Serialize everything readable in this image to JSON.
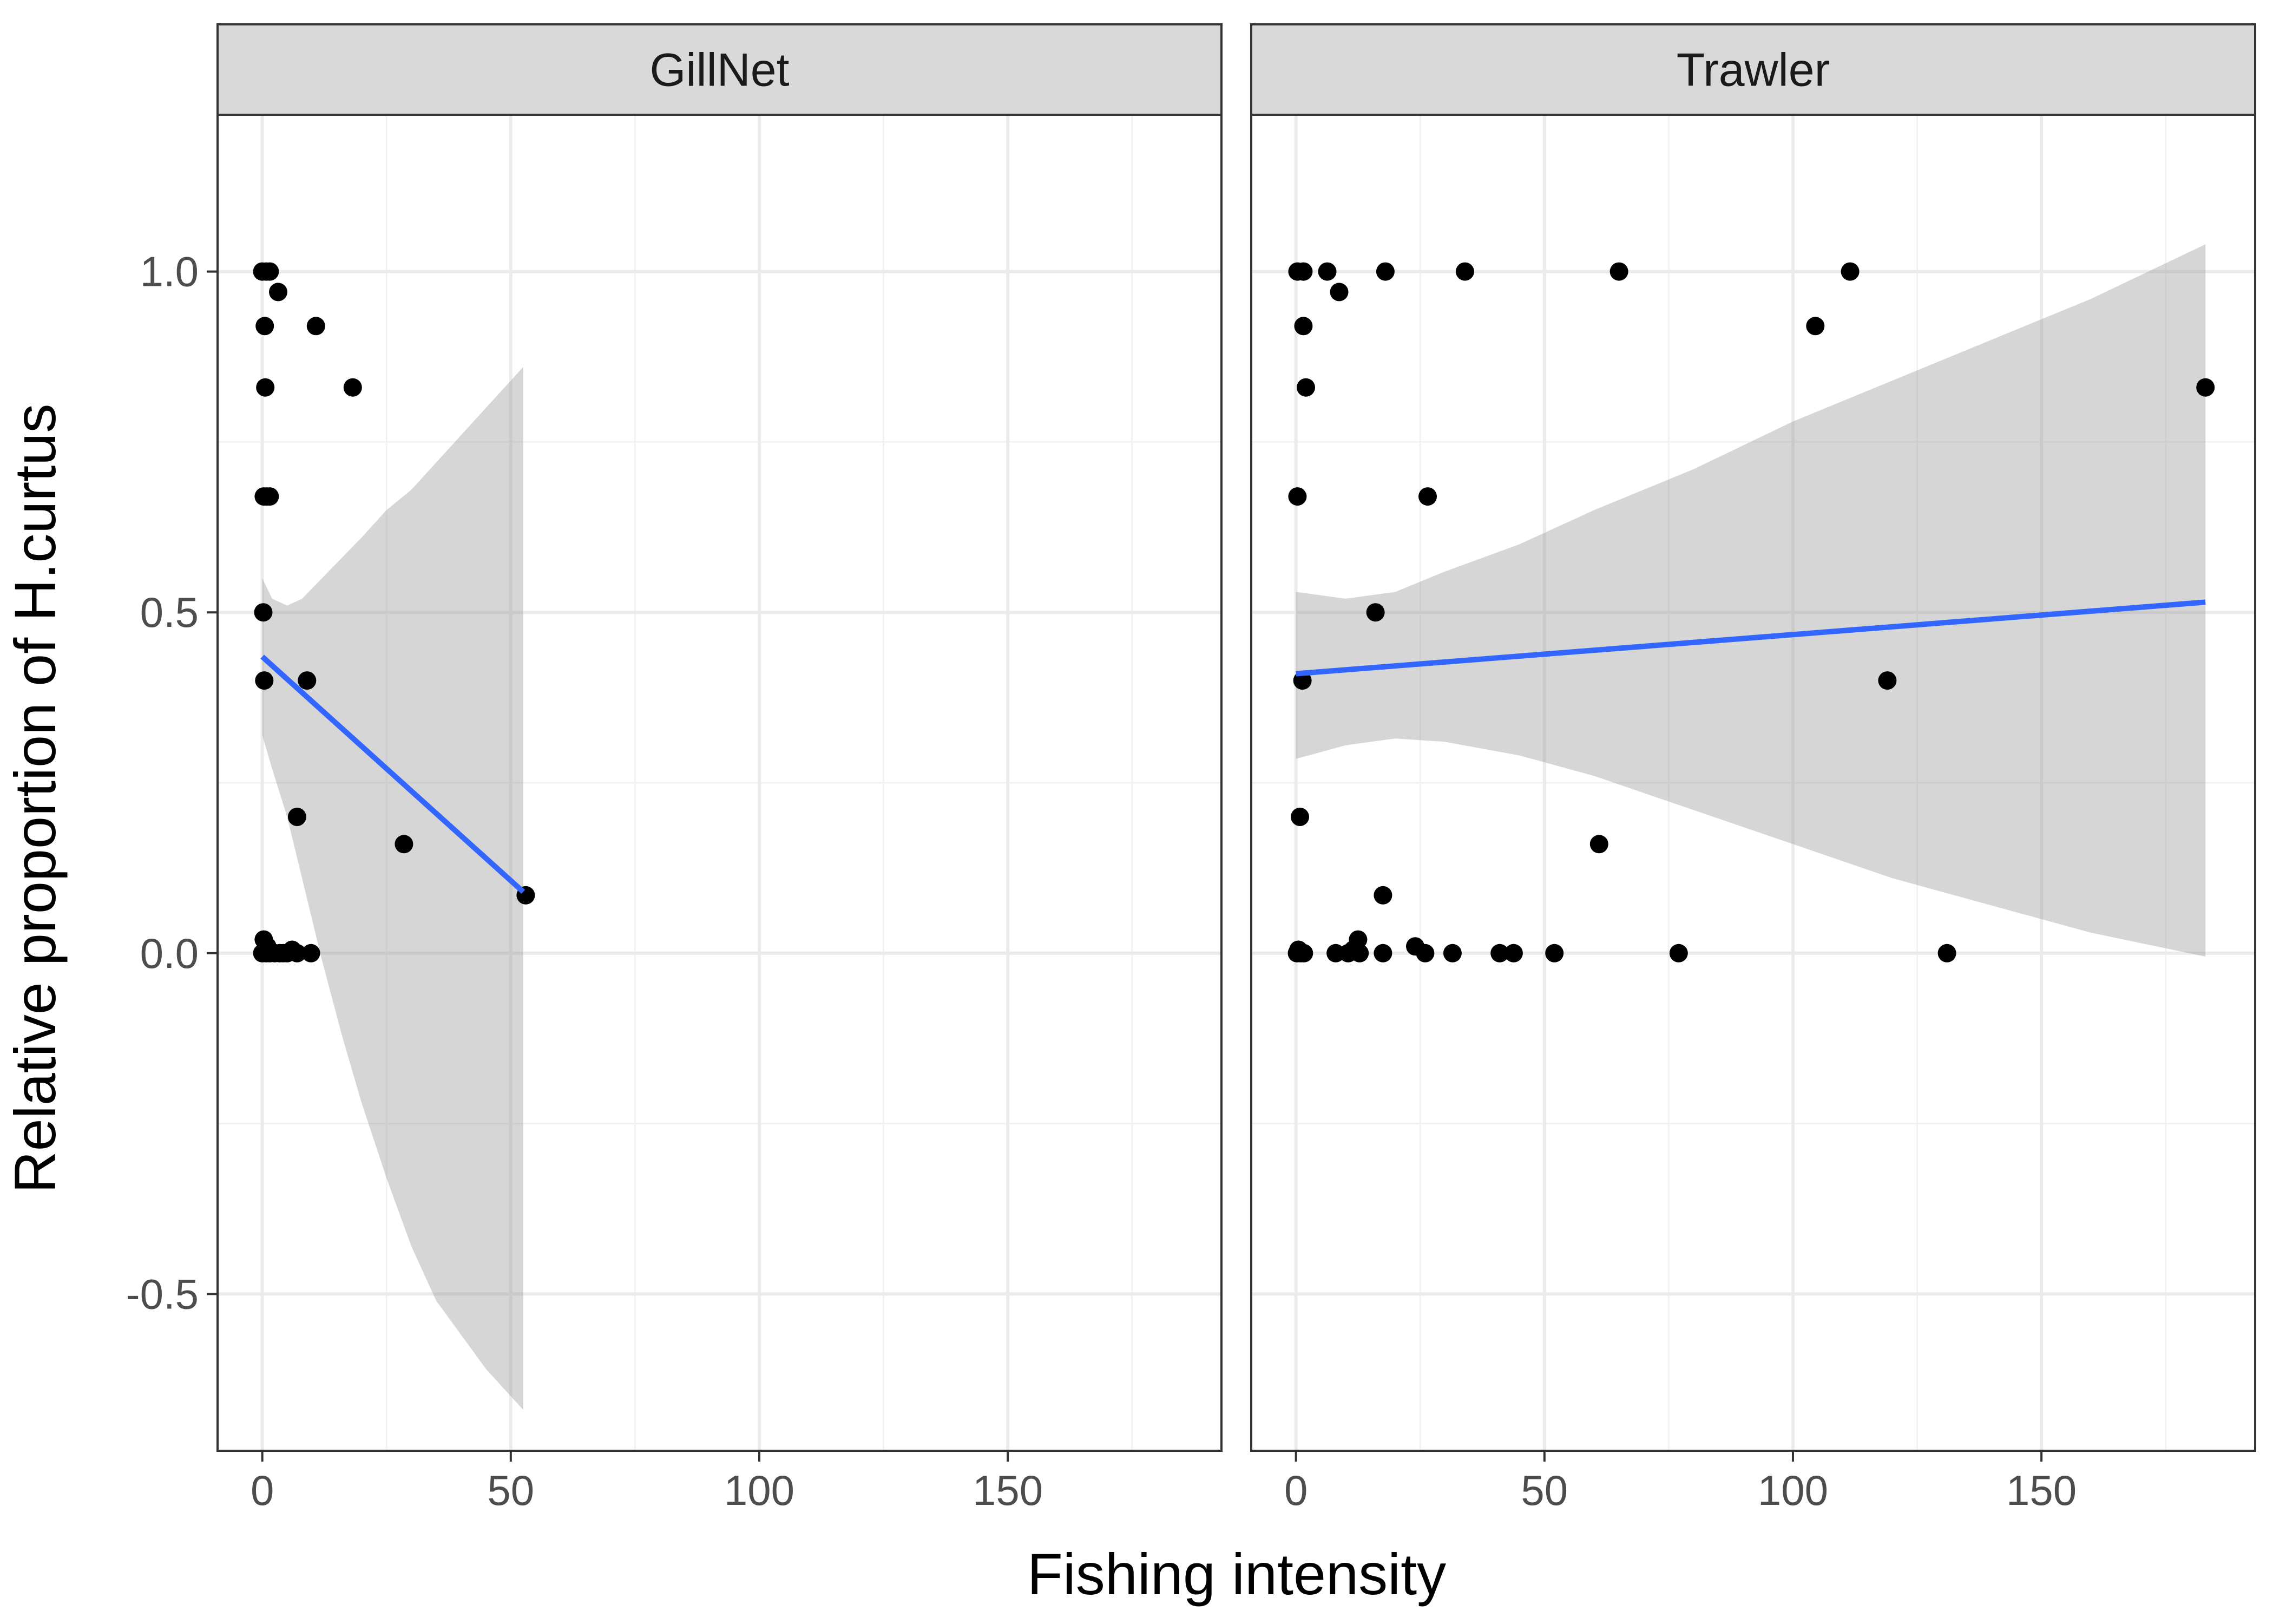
{
  "chart_data": {
    "type": "scatter",
    "xlabel": "Fishing intensity",
    "ylabel": "Relative proportion of H.curtus",
    "xlim": [
      -9,
      193
    ],
    "ylim": [
      -0.73,
      1.23
    ],
    "x_ticks": [
      0,
      50,
      100,
      150
    ],
    "y_ticks": [
      1.0,
      0.5,
      0.0,
      -0.5
    ],
    "x_tick_labels": [
      "0",
      "50",
      "100",
      "150"
    ],
    "y_tick_labels": [
      "1.0",
      "0.5",
      "0.0",
      "-0.5"
    ],
    "grid": true,
    "point_color": "#000000",
    "line_color": "#3366ff",
    "band_color": "#999999",
    "strip_color": "#d9d9d9",
    "panels": [
      {
        "label": "GillNet",
        "points": [
          [
            0.0,
            1.0
          ],
          [
            0.8,
            1.0
          ],
          [
            1.5,
            1.0
          ],
          [
            3.2,
            0.97
          ],
          [
            0.5,
            0.92
          ],
          [
            10.8,
            0.92
          ],
          [
            0.6,
            0.83
          ],
          [
            18.2,
            0.83
          ],
          [
            0.3,
            0.67
          ],
          [
            0.9,
            0.67
          ],
          [
            1.5,
            0.67
          ],
          [
            0.2,
            0.5
          ],
          [
            0.4,
            0.4
          ],
          [
            9.0,
            0.4
          ],
          [
            7.0,
            0.2
          ],
          [
            28.5,
            0.16
          ],
          [
            53.0,
            0.085
          ],
          [
            0.3,
            0.02
          ],
          [
            1.0,
            0.01
          ],
          [
            0.0,
            0.0
          ],
          [
            0.8,
            0.0
          ],
          [
            1.5,
            0.0
          ],
          [
            2.5,
            0.0
          ],
          [
            3.5,
            0.0
          ],
          [
            4.2,
            0.0
          ],
          [
            5.0,
            0.0
          ],
          [
            6.0,
            0.005
          ],
          [
            7.0,
            0.0
          ],
          [
            9.8,
            0.0
          ]
        ],
        "fit": {
          "x0": 0.0,
          "y0": 0.435,
          "x1": 52.5,
          "y1": 0.09
        },
        "band": {
          "x": [
            0,
            2,
            5,
            8,
            12,
            16,
            20,
            25,
            30,
            35,
            40,
            45,
            50,
            52.5
          ],
          "lower": [
            0.32,
            0.27,
            0.2,
            0.11,
            -0.01,
            -0.12,
            -0.22,
            -0.33,
            -0.43,
            -0.51,
            -0.56,
            -0.61,
            -0.65,
            -0.67
          ],
          "upper": [
            0.55,
            0.52,
            0.51,
            0.52,
            0.55,
            0.58,
            0.61,
            0.65,
            0.68,
            0.72,
            0.76,
            0.8,
            0.84,
            0.86
          ]
        }
      },
      {
        "label": "Trawler",
        "points": [
          [
            0.3,
            1.0
          ],
          [
            1.5,
            1.0
          ],
          [
            6.3,
            1.0
          ],
          [
            18.0,
            1.0
          ],
          [
            34.0,
            1.0
          ],
          [
            65.0,
            1.0
          ],
          [
            111.5,
            1.0
          ],
          [
            1.5,
            0.92
          ],
          [
            104.5,
            0.92
          ],
          [
            8.7,
            0.97
          ],
          [
            2.0,
            0.83
          ],
          [
            183.0,
            0.83
          ],
          [
            0.3,
            0.67
          ],
          [
            26.5,
            0.67
          ],
          [
            16.0,
            0.5
          ],
          [
            1.3,
            0.4
          ],
          [
            119.0,
            0.4
          ],
          [
            0.8,
            0.2
          ],
          [
            61.0,
            0.16
          ],
          [
            17.5,
            0.085
          ],
          [
            0.2,
            0.0
          ],
          [
            0.5,
            0.005
          ],
          [
            1.0,
            0.0
          ],
          [
            1.6,
            0.0
          ],
          [
            8.0,
            0.0
          ],
          [
            10.5,
            0.0
          ],
          [
            11.5,
            0.005
          ],
          [
            12.5,
            0.02
          ],
          [
            12.8,
            0.0
          ],
          [
            17.5,
            0.0
          ],
          [
            24.0,
            0.01
          ],
          [
            26.0,
            0.0
          ],
          [
            31.5,
            0.0
          ],
          [
            41.0,
            0.0
          ],
          [
            43.8,
            0.0
          ],
          [
            52.0,
            0.0
          ],
          [
            77.0,
            0.0
          ],
          [
            131.0,
            0.0
          ]
        ],
        "fit": {
          "x0": 0.0,
          "y0": 0.41,
          "x1": 183.0,
          "y1": 0.515
        },
        "band": {
          "x": [
            0,
            10,
            20,
            30,
            45,
            60,
            80,
            100,
            120,
            140,
            160,
            183
          ],
          "lower": [
            0.285,
            0.305,
            0.315,
            0.31,
            0.29,
            0.26,
            0.21,
            0.16,
            0.11,
            0.07,
            0.03,
            -0.005
          ],
          "upper": [
            0.53,
            0.52,
            0.53,
            0.56,
            0.6,
            0.65,
            0.71,
            0.78,
            0.84,
            0.9,
            0.96,
            1.04
          ]
        }
      }
    ]
  }
}
